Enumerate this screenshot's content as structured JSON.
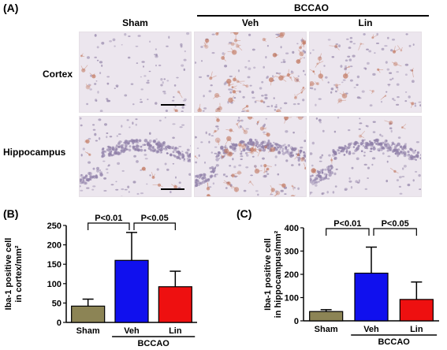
{
  "panel_a": {
    "label": "(A)",
    "group_label": "BCCAO",
    "columns": [
      "Sham",
      "Veh",
      "Lin"
    ],
    "rows": [
      "Cortex",
      "Hippocampus"
    ],
    "micrographs": [
      {
        "row": "Cortex",
        "col": "Sham",
        "stain": "light",
        "has_scale_bar": true
      },
      {
        "row": "Cortex",
        "col": "Veh",
        "stain": "dense",
        "has_scale_bar": false
      },
      {
        "row": "Cortex",
        "col": "Lin",
        "stain": "medium",
        "has_scale_bar": false
      },
      {
        "row": "Hippocampus",
        "col": "Sham",
        "stain": "light",
        "has_scale_bar": true
      },
      {
        "row": "Hippocampus",
        "col": "Veh",
        "stain": "dense",
        "has_scale_bar": false
      },
      {
        "row": "Hippocampus",
        "col": "Lin",
        "stain": "light",
        "has_scale_bar": false
      }
    ],
    "colors": {
      "background": "#ece6ee",
      "nucleus": "#9d8fb0",
      "stain": "#c27a63"
    }
  },
  "chart_data": [
    {
      "panel_label": "(B)",
      "type": "bar",
      "ylabel_lines": [
        "Iba-1 positive cell",
        "in cortex/mm²"
      ],
      "categories": [
        "Sham",
        "Veh",
        "Lin"
      ],
      "values": [
        42,
        160,
        92
      ],
      "error": [
        18,
        72,
        40
      ],
      "colors": [
        "#8c8455",
        "#1010ee",
        "#ee1010"
      ],
      "ylim": [
        0,
        250
      ],
      "yticks": [
        0,
        50,
        100,
        150,
        200,
        250
      ],
      "group_label": "BCCAO",
      "group_span": [
        "Veh",
        "Lin"
      ],
      "comparisons": [
        {
          "from": "Sham",
          "to": "Veh",
          "label": "P<0.01"
        },
        {
          "from": "Veh",
          "to": "Lin",
          "label": "P<0.05"
        }
      ],
      "grid": false
    },
    {
      "panel_label": "(C)",
      "type": "bar",
      "ylabel_lines": [
        "Iba-1 positive cell",
        "in hippocampus/mm²"
      ],
      "categories": [
        "Sham",
        "Veh",
        "Lin"
      ],
      "values": [
        40,
        205,
        92
      ],
      "error": [
        8,
        112,
        75
      ],
      "colors": [
        "#8c8455",
        "#1010ee",
        "#ee1010"
      ],
      "ylim": [
        0,
        400
      ],
      "yticks": [
        0,
        100,
        200,
        300,
        400
      ],
      "group_label": "BCCAO",
      "group_span": [
        "Veh",
        "Lin"
      ],
      "comparisons": [
        {
          "from": "Sham",
          "to": "Veh",
          "label": "P<0.01"
        },
        {
          "from": "Veh",
          "to": "Lin",
          "label": "P<0.05"
        }
      ],
      "grid": false
    }
  ]
}
